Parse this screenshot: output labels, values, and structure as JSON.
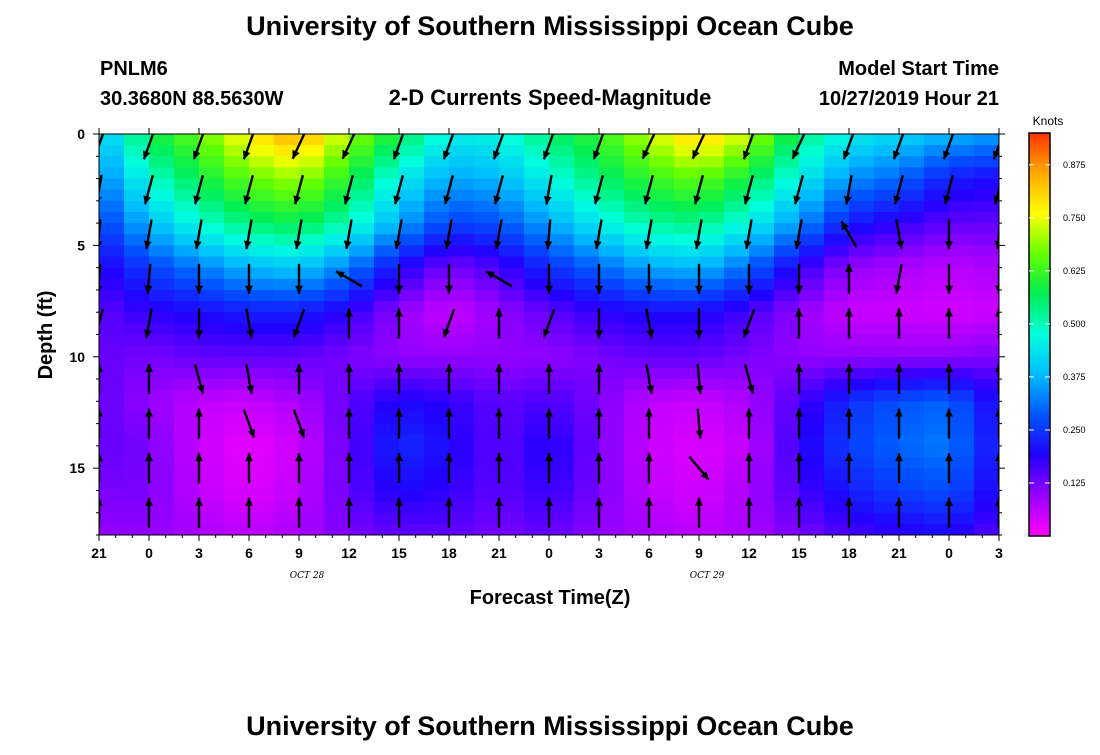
{
  "header": {
    "title_top": "University of Southern Mississippi Ocean Cube",
    "title_bottom": "University of Southern Mississippi Ocean Cube",
    "station_id": "PNLM6",
    "coordinates": "30.3680N 88.5630W",
    "model_start_label": "Model Start Time",
    "model_start_value": "10/27/2019 Hour 21"
  },
  "chart_data": {
    "type": "heatmap",
    "title": "2-D Currents Speed-Magnitude",
    "xlabel": "Forecast Time(Z)",
    "ylabel": "Depth (ft)",
    "x_ticks": [
      "21",
      "0",
      "3",
      "6",
      "9",
      "12",
      "15",
      "18",
      "21",
      "0",
      "3",
      "6",
      "9",
      "12",
      "15",
      "18",
      "21",
      "0",
      "3"
    ],
    "x_range_hours": [
      0,
      54
    ],
    "date_labels": [
      {
        "label": "OCT 28",
        "at_hour": 15
      },
      {
        "label": "OCT 29",
        "at_hour": 39
      }
    ],
    "y_ticks": [
      0,
      5,
      10,
      15
    ],
    "ylim": [
      0,
      18
    ],
    "y_inverted": true,
    "colorbar": {
      "unit": "Knots",
      "ticks": [
        0.125,
        0.25,
        0.375,
        0.5,
        0.625,
        0.75,
        0.875
      ],
      "tick_labels": [
        "0.125",
        "0.250",
        "0.375",
        "0.500",
        "0.625",
        "0.750",
        "0.875"
      ],
      "range": [
        0,
        0.95
      ],
      "colors": [
        "#ff00ff",
        "#9900ff",
        "#2200ff",
        "#0055ff",
        "#00bbff",
        "#00ffdd",
        "#00ee55",
        "#66ff00",
        "#ffff00",
        "#ffaa00",
        "#ff3300"
      ]
    },
    "speed_grid": {
      "depths_ft": [
        0,
        2,
        4,
        6,
        8,
        10,
        12,
        14,
        16,
        18
      ],
      "hours": [
        0,
        3,
        6,
        9,
        12,
        15,
        18,
        21,
        24,
        27,
        30,
        33,
        36,
        39,
        42,
        45,
        48,
        51,
        54
      ],
      "rows": [
        [
          0.38,
          0.58,
          0.66,
          0.78,
          0.86,
          0.7,
          0.58,
          0.45,
          0.46,
          0.55,
          0.62,
          0.72,
          0.82,
          0.72,
          0.55,
          0.45,
          0.42,
          0.38,
          0.35
        ],
        [
          0.32,
          0.48,
          0.58,
          0.66,
          0.7,
          0.6,
          0.45,
          0.36,
          0.38,
          0.46,
          0.55,
          0.62,
          0.66,
          0.58,
          0.45,
          0.34,
          0.3,
          0.22,
          0.2
        ],
        [
          0.25,
          0.38,
          0.48,
          0.55,
          0.58,
          0.5,
          0.36,
          0.26,
          0.28,
          0.36,
          0.45,
          0.52,
          0.54,
          0.46,
          0.34,
          0.22,
          0.18,
          0.14,
          0.14
        ],
        [
          0.18,
          0.26,
          0.32,
          0.38,
          0.4,
          0.32,
          0.2,
          0.12,
          0.16,
          0.24,
          0.3,
          0.36,
          0.38,
          0.3,
          0.18,
          0.1,
          0.08,
          0.06,
          0.08
        ],
        [
          0.14,
          0.18,
          0.2,
          0.22,
          0.22,
          0.18,
          0.1,
          0.05,
          0.1,
          0.14,
          0.18,
          0.2,
          0.2,
          0.16,
          0.1,
          0.05,
          0.05,
          0.04,
          0.05
        ],
        [
          0.14,
          0.12,
          0.14,
          0.14,
          0.14,
          0.12,
          0.1,
          0.1,
          0.1,
          0.1,
          0.12,
          0.14,
          0.14,
          0.12,
          0.1,
          0.1,
          0.1,
          0.1,
          0.12
        ],
        [
          0.14,
          0.1,
          0.06,
          0.05,
          0.08,
          0.14,
          0.2,
          0.18,
          0.14,
          0.16,
          0.12,
          0.06,
          0.05,
          0.08,
          0.16,
          0.24,
          0.28,
          0.3,
          0.18
        ],
        [
          0.14,
          0.12,
          0.05,
          0.02,
          0.05,
          0.14,
          0.24,
          0.2,
          0.14,
          0.2,
          0.12,
          0.05,
          0.03,
          0.06,
          0.18,
          0.26,
          0.3,
          0.32,
          0.2
        ],
        [
          0.12,
          0.12,
          0.06,
          0.03,
          0.06,
          0.14,
          0.2,
          0.18,
          0.14,
          0.18,
          0.12,
          0.06,
          0.04,
          0.08,
          0.16,
          0.22,
          0.26,
          0.28,
          0.18
        ],
        [
          0.1,
          0.1,
          0.08,
          0.06,
          0.08,
          0.12,
          0.14,
          0.14,
          0.12,
          0.14,
          0.1,
          0.08,
          0.06,
          0.08,
          0.12,
          0.16,
          0.18,
          0.2,
          0.14
        ]
      ]
    },
    "vectors": {
      "depths_ft": [
        0.5,
        2.5,
        4.5,
        6.5,
        8.5,
        11,
        13,
        15,
        17
      ],
      "hours": [
        0,
        3,
        6,
        9,
        12,
        15,
        18,
        21,
        24,
        27,
        30,
        33,
        36,
        39,
        42,
        45,
        48,
        51,
        54
      ],
      "dir_deg": [
        [
          200,
          200,
          200,
          200,
          205,
          205,
          200,
          200,
          200,
          200,
          200,
          205,
          205,
          200,
          205,
          200,
          200,
          200,
          200
        ],
        [
          190,
          195,
          195,
          195,
          195,
          195,
          195,
          195,
          195,
          190,
          195,
          195,
          195,
          195,
          195,
          190,
          195,
          195,
          195
        ],
        [
          185,
          190,
          190,
          190,
          190,
          190,
          190,
          190,
          190,
          185,
          190,
          190,
          190,
          190,
          190,
          330,
          170,
          180,
          185
        ],
        [
          185,
          185,
          180,
          180,
          180,
          300,
          180,
          180,
          300,
          180,
          180,
          180,
          180,
          180,
          180,
          0,
          190,
          180,
          180
        ],
        [
          195,
          190,
          180,
          170,
          200,
          0,
          0,
          200,
          0,
          200,
          180,
          170,
          180,
          200,
          0,
          0,
          0,
          0,
          0
        ],
        [
          0,
          0,
          165,
          170,
          0,
          0,
          0,
          0,
          0,
          0,
          0,
          170,
          175,
          165,
          0,
          0,
          0,
          0,
          0
        ],
        [
          0,
          0,
          0,
          160,
          160,
          0,
          0,
          0,
          0,
          0,
          0,
          0,
          175,
          0,
          0,
          0,
          0,
          0,
          0
        ],
        [
          0,
          0,
          0,
          0,
          0,
          0,
          0,
          0,
          0,
          0,
          0,
          0,
          140,
          0,
          0,
          0,
          0,
          0,
          0
        ],
        [
          0,
          0,
          0,
          0,
          0,
          0,
          0,
          0,
          0,
          0,
          0,
          0,
          0,
          0,
          0,
          0,
          0,
          0,
          0
        ]
      ]
    }
  }
}
